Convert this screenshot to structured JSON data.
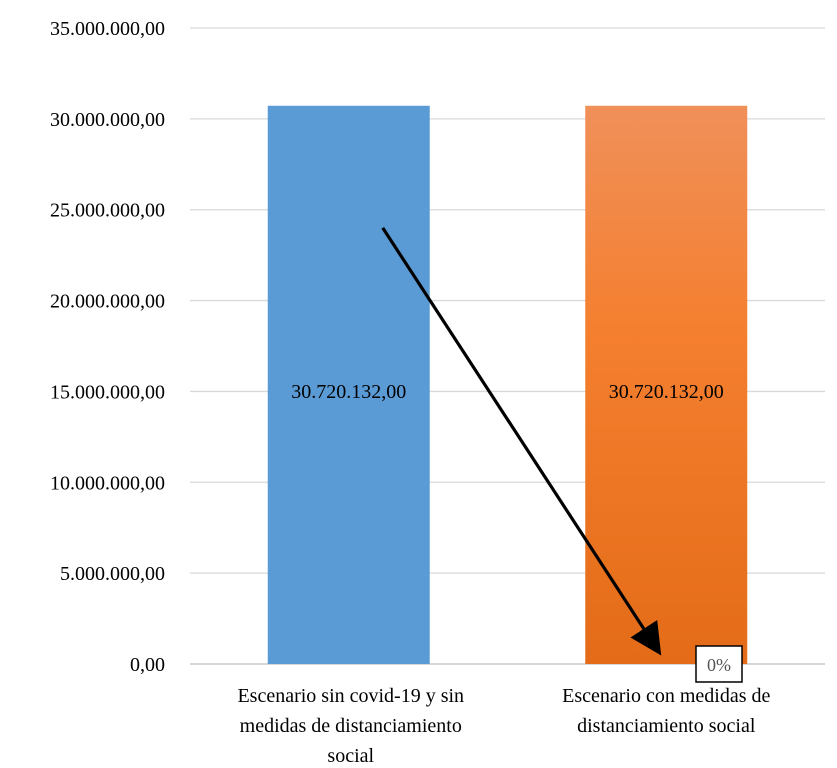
{
  "chart_data": {
    "type": "bar",
    "categories": [
      [
        "Escenario sin covid-19 y sin",
        "medidas de distanciamiento",
        "social"
      ],
      [
        "Escenario con medidas de",
        "distanciamiento social"
      ]
    ],
    "values": [
      30720132,
      30720132
    ],
    "data_labels": [
      "30.720.132,00",
      "30.720.132,00"
    ],
    "ylim": [
      0,
      35000000
    ],
    "yticks": [
      0,
      5000000,
      10000000,
      15000000,
      20000000,
      25000000,
      30000000,
      35000000
    ],
    "ytick_labels": [
      "0,00",
      "5.000.000,00",
      "10.000.000,00",
      "15.000.000,00",
      "20.000.000,00",
      "25.000.000,00",
      "30.000.000,00",
      "35.000.000,00"
    ],
    "bar_colors": [
      "#5b9bd5",
      "#ed7d31"
    ],
    "gridlines": true,
    "annotation": {
      "type": "arrow",
      "from": {
        "category": 0,
        "value": 24000000
      },
      "to": {
        "category": 1,
        "value": 1000000
      },
      "color": "#000000",
      "label": "0%"
    }
  }
}
